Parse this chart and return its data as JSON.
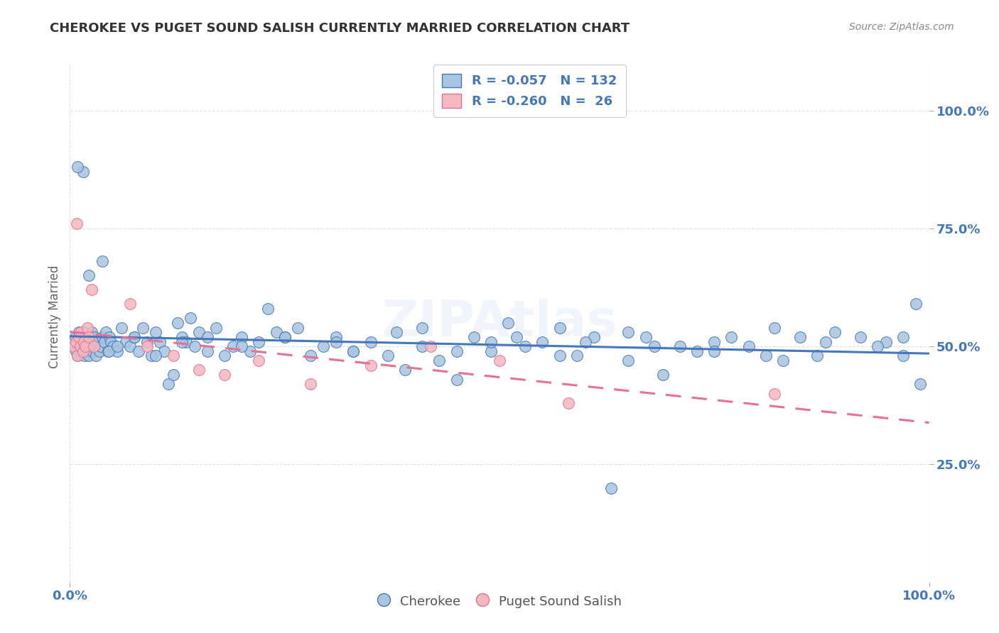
{
  "title": "CHEROKEE VS PUGET SOUND SALISH CURRENTLY MARRIED CORRELATION CHART",
  "source": "Source: ZipAtlas.com",
  "ylabel": "Currently Married",
  "ytick_labels": [
    "25.0%",
    "50.0%",
    "75.0%",
    "100.0%"
  ],
  "ytick_values": [
    0.25,
    0.5,
    0.75,
    1.0
  ],
  "xlim": [
    0.0,
    1.0
  ],
  "ylim": [
    0.0,
    1.1
  ],
  "cherokee_R": "-0.057",
  "cherokee_N": "132",
  "salish_R": "-0.260",
  "salish_N": "26",
  "cherokee_color": "#a8c4e0",
  "salish_color": "#f4b8c1",
  "cherokee_line_color": "#4477bb",
  "salish_line_color": "#e87090",
  "background_color": "#ffffff",
  "grid_color": "#dddddd",
  "title_color": "#333333",
  "axis_label_color": "#4477bb",
  "watermark": "ZIPAtlas",
  "cherokee_x": [
    0.004,
    0.006,
    0.007,
    0.008,
    0.009,
    0.01,
    0.011,
    0.012,
    0.013,
    0.014,
    0.015,
    0.016,
    0.017,
    0.018,
    0.019,
    0.02,
    0.021,
    0.022,
    0.023,
    0.024,
    0.025,
    0.026,
    0.027,
    0.028,
    0.029,
    0.03,
    0.032,
    0.034,
    0.036,
    0.038,
    0.04,
    0.042,
    0.044,
    0.046,
    0.048,
    0.05,
    0.055,
    0.06,
    0.065,
    0.07,
    0.075,
    0.08,
    0.085,
    0.09,
    0.095,
    0.1,
    0.105,
    0.11,
    0.115,
    0.12,
    0.125,
    0.13,
    0.135,
    0.14,
    0.145,
    0.15,
    0.16,
    0.17,
    0.18,
    0.19,
    0.2,
    0.21,
    0.22,
    0.23,
    0.24,
    0.25,
    0.265,
    0.28,
    0.295,
    0.31,
    0.33,
    0.35,
    0.37,
    0.39,
    0.41,
    0.43,
    0.45,
    0.47,
    0.49,
    0.51,
    0.53,
    0.55,
    0.57,
    0.59,
    0.61,
    0.63,
    0.65,
    0.67,
    0.69,
    0.71,
    0.73,
    0.75,
    0.77,
    0.79,
    0.81,
    0.83,
    0.85,
    0.87,
    0.89,
    0.92,
    0.95,
    0.97,
    0.985,
    0.99,
    0.038,
    0.022,
    0.015,
    0.009,
    0.045,
    0.055,
    0.075,
    0.1,
    0.13,
    0.16,
    0.2,
    0.25,
    0.31,
    0.38,
    0.45,
    0.52,
    0.6,
    0.68,
    0.75,
    0.82,
    0.88,
    0.94,
    0.97,
    0.33,
    0.41,
    0.49,
    0.57,
    0.65
  ],
  "cherokee_y": [
    0.5,
    0.52,
    0.49,
    0.51,
    0.48,
    0.53,
    0.5,
    0.51,
    0.49,
    0.52,
    0.5,
    0.53,
    0.48,
    0.51,
    0.49,
    0.5,
    0.52,
    0.48,
    0.51,
    0.5,
    0.53,
    0.49,
    0.51,
    0.5,
    0.52,
    0.48,
    0.51,
    0.49,
    0.5,
    0.52,
    0.51,
    0.53,
    0.49,
    0.52,
    0.51,
    0.5,
    0.49,
    0.54,
    0.51,
    0.5,
    0.52,
    0.49,
    0.54,
    0.51,
    0.48,
    0.53,
    0.51,
    0.49,
    0.42,
    0.44,
    0.55,
    0.52,
    0.51,
    0.56,
    0.5,
    0.53,
    0.52,
    0.54,
    0.48,
    0.5,
    0.52,
    0.49,
    0.51,
    0.58,
    0.53,
    0.52,
    0.54,
    0.48,
    0.5,
    0.52,
    0.49,
    0.51,
    0.48,
    0.45,
    0.5,
    0.47,
    0.43,
    0.52,
    0.49,
    0.55,
    0.5,
    0.51,
    0.54,
    0.48,
    0.52,
    0.2,
    0.47,
    0.52,
    0.44,
    0.5,
    0.49,
    0.51,
    0.52,
    0.5,
    0.48,
    0.47,
    0.52,
    0.48,
    0.53,
    0.52,
    0.51,
    0.48,
    0.59,
    0.42,
    0.68,
    0.65,
    0.87,
    0.88,
    0.49,
    0.5,
    0.52,
    0.48,
    0.51,
    0.49,
    0.5,
    0.52,
    0.51,
    0.53,
    0.49,
    0.52,
    0.51,
    0.5,
    0.49,
    0.54,
    0.51,
    0.5,
    0.52,
    0.49,
    0.54,
    0.51,
    0.48,
    0.53
  ],
  "salish_x": [
    0.004,
    0.007,
    0.008,
    0.009,
    0.01,
    0.012,
    0.013,
    0.015,
    0.016,
    0.018,
    0.02,
    0.022,
    0.025,
    0.028,
    0.07,
    0.09,
    0.12,
    0.15,
    0.18,
    0.22,
    0.28,
    0.35,
    0.42,
    0.5,
    0.58,
    0.82
  ],
  "salish_y": [
    0.5,
    0.51,
    0.76,
    0.48,
    0.52,
    0.5,
    0.53,
    0.49,
    0.51,
    0.5,
    0.54,
    0.52,
    0.62,
    0.5,
    0.59,
    0.5,
    0.48,
    0.45,
    0.44,
    0.47,
    0.42,
    0.46,
    0.5,
    0.47,
    0.38,
    0.4
  ]
}
